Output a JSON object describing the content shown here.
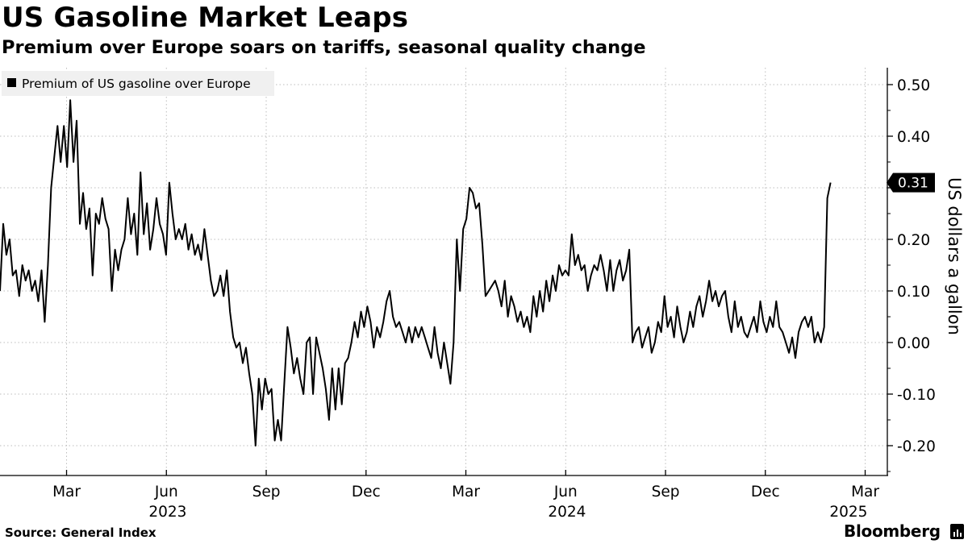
{
  "header": {
    "title": "US Gasoline Market Leaps",
    "subtitle": "Premium over Europe soars on tariffs, seasonal quality change"
  },
  "footer": {
    "source": "Source: General Index",
    "brand": "Bloomberg",
    "brand_icon": "bloomberg-terminal-icon"
  },
  "colors": {
    "line": "#000000",
    "grid": "#bdbdbd",
    "legend_bg": "#f0f0f0",
    "label_bg": "#000000",
    "label_text": "#ffffff"
  },
  "chart_data": {
    "type": "line",
    "title": "US Gasoline Market Leaps",
    "subtitle": "Premium over Europe soars on tariffs, seasonal quality change",
    "ylabel": "US dollars a gallon",
    "xlabel": "",
    "ylim": [
      -0.26,
      0.53
    ],
    "xlim": [
      2023.0,
      2025.21
    ],
    "yticks": [
      {
        "value": 0.5,
        "label": "0.50"
      },
      {
        "value": 0.4,
        "label": "0.40"
      },
      {
        "value": 0.3,
        "label": ""
      },
      {
        "value": 0.2,
        "label": "0.20"
      },
      {
        "value": 0.1,
        "label": "0.10"
      },
      {
        "value": 0.0,
        "label": "0.00"
      },
      {
        "value": -0.1,
        "label": "-0.10"
      },
      {
        "value": -0.2,
        "label": "-0.20"
      }
    ],
    "xticks": [
      {
        "t": 2023.1667,
        "label": "Mar"
      },
      {
        "t": 2023.4167,
        "label": "Jun"
      },
      {
        "t": 2023.6667,
        "label": "Sep"
      },
      {
        "t": 2023.9167,
        "label": "Dec"
      },
      {
        "t": 2024.1667,
        "label": "Mar"
      },
      {
        "t": 2024.4167,
        "label": "Jun"
      },
      {
        "t": 2024.6667,
        "label": "Sep"
      },
      {
        "t": 2024.9167,
        "label": "Dec"
      },
      {
        "t": 2025.1667,
        "label": "Mar"
      }
    ],
    "year_labels": [
      {
        "t": 2023.42,
        "label": "2023"
      },
      {
        "t": 2024.42,
        "label": "2024"
      },
      {
        "t": 2025.125,
        "label": "2025"
      }
    ],
    "grid": true,
    "legend": {
      "position": "top-left",
      "entries": [
        "Premium of US gasoline over Europe"
      ]
    },
    "last_value": {
      "value": 0.31,
      "label": "0.31"
    },
    "series": [
      {
        "name": "Premium of US gasoline over Europe",
        "points": [
          [
            2023.0,
            0.1
          ],
          [
            2023.008,
            0.23
          ],
          [
            2023.016,
            0.17
          ],
          [
            2023.024,
            0.2
          ],
          [
            2023.032,
            0.13
          ],
          [
            2023.04,
            0.14
          ],
          [
            2023.048,
            0.09
          ],
          [
            2023.056,
            0.15
          ],
          [
            2023.064,
            0.12
          ],
          [
            2023.072,
            0.14
          ],
          [
            2023.08,
            0.1
          ],
          [
            2023.088,
            0.12
          ],
          [
            2023.096,
            0.08
          ],
          [
            2023.104,
            0.14
          ],
          [
            2023.112,
            0.04
          ],
          [
            2023.12,
            0.15
          ],
          [
            2023.128,
            0.3
          ],
          [
            2023.136,
            0.36
          ],
          [
            2023.144,
            0.42
          ],
          [
            2023.152,
            0.35
          ],
          [
            2023.16,
            0.42
          ],
          [
            2023.168,
            0.34
          ],
          [
            2023.176,
            0.47
          ],
          [
            2023.184,
            0.35
          ],
          [
            2023.192,
            0.43
          ],
          [
            2023.2,
            0.23
          ],
          [
            2023.208,
            0.29
          ],
          [
            2023.216,
            0.22
          ],
          [
            2023.224,
            0.26
          ],
          [
            2023.232,
            0.13
          ],
          [
            2023.24,
            0.25
          ],
          [
            2023.248,
            0.23
          ],
          [
            2023.256,
            0.28
          ],
          [
            2023.264,
            0.24
          ],
          [
            2023.272,
            0.22
          ],
          [
            2023.28,
            0.1
          ],
          [
            2023.288,
            0.18
          ],
          [
            2023.296,
            0.14
          ],
          [
            2023.304,
            0.18
          ],
          [
            2023.312,
            0.2
          ],
          [
            2023.32,
            0.28
          ],
          [
            2023.328,
            0.21
          ],
          [
            2023.336,
            0.25
          ],
          [
            2023.344,
            0.17
          ],
          [
            2023.352,
            0.33
          ],
          [
            2023.36,
            0.21
          ],
          [
            2023.368,
            0.27
          ],
          [
            2023.376,
            0.18
          ],
          [
            2023.384,
            0.22
          ],
          [
            2023.392,
            0.28
          ],
          [
            2023.4,
            0.23
          ],
          [
            2023.408,
            0.21
          ],
          [
            2023.416,
            0.17
          ],
          [
            2023.424,
            0.31
          ],
          [
            2023.432,
            0.25
          ],
          [
            2023.44,
            0.2
          ],
          [
            2023.448,
            0.22
          ],
          [
            2023.456,
            0.2
          ],
          [
            2023.464,
            0.23
          ],
          [
            2023.472,
            0.18
          ],
          [
            2023.48,
            0.21
          ],
          [
            2023.488,
            0.17
          ],
          [
            2023.496,
            0.19
          ],
          [
            2023.504,
            0.16
          ],
          [
            2023.512,
            0.22
          ],
          [
            2023.52,
            0.17
          ],
          [
            2023.528,
            0.12
          ],
          [
            2023.536,
            0.09
          ],
          [
            2023.544,
            0.1
          ],
          [
            2023.552,
            0.13
          ],
          [
            2023.56,
            0.09
          ],
          [
            2023.568,
            0.14
          ],
          [
            2023.576,
            0.06
          ],
          [
            2023.584,
            0.01
          ],
          [
            2023.592,
            -0.01
          ],
          [
            2023.6,
            0.0
          ],
          [
            2023.608,
            -0.04
          ],
          [
            2023.616,
            -0.01
          ],
          [
            2023.624,
            -0.06
          ],
          [
            2023.632,
            -0.1
          ],
          [
            2023.64,
            -0.2
          ],
          [
            2023.648,
            -0.07
          ],
          [
            2023.656,
            -0.13
          ],
          [
            2023.664,
            -0.07
          ],
          [
            2023.672,
            -0.1
          ],
          [
            2023.68,
            -0.09
          ],
          [
            2023.688,
            -0.19
          ],
          [
            2023.696,
            -0.15
          ],
          [
            2023.704,
            -0.19
          ],
          [
            2023.712,
            -0.08
          ],
          [
            2023.72,
            0.03
          ],
          [
            2023.728,
            -0.01
          ],
          [
            2023.736,
            -0.06
          ],
          [
            2023.744,
            -0.03
          ],
          [
            2023.752,
            -0.07
          ],
          [
            2023.76,
            -0.1
          ],
          [
            2023.768,
            0.0
          ],
          [
            2023.776,
            0.01
          ],
          [
            2023.784,
            -0.1
          ],
          [
            2023.792,
            0.01
          ],
          [
            2023.8,
            -0.02
          ],
          [
            2023.808,
            -0.05
          ],
          [
            2023.816,
            -0.09
          ],
          [
            2023.824,
            -0.15
          ],
          [
            2023.832,
            -0.05
          ],
          [
            2023.84,
            -0.13
          ],
          [
            2023.848,
            -0.05
          ],
          [
            2023.856,
            -0.12
          ],
          [
            2023.864,
            -0.04
          ],
          [
            2023.872,
            -0.03
          ],
          [
            2023.88,
            0.0
          ],
          [
            2023.888,
            0.04
          ],
          [
            2023.896,
            0.01
          ],
          [
            2023.904,
            0.06
          ],
          [
            2023.912,
            0.03
          ],
          [
            2023.92,
            0.07
          ],
          [
            2023.928,
            0.04
          ],
          [
            2023.936,
            -0.01
          ],
          [
            2023.944,
            0.03
          ],
          [
            2023.952,
            0.01
          ],
          [
            2023.96,
            0.04
          ],
          [
            2023.968,
            0.08
          ],
          [
            2023.976,
            0.1
          ],
          [
            2023.984,
            0.05
          ],
          [
            2023.992,
            0.03
          ],
          [
            2024.0,
            0.04
          ],
          [
            2024.008,
            0.02
          ],
          [
            2024.016,
            0.0
          ],
          [
            2024.024,
            0.03
          ],
          [
            2024.032,
            0.0
          ],
          [
            2024.04,
            0.03
          ],
          [
            2024.048,
            0.01
          ],
          [
            2024.056,
            0.03
          ],
          [
            2024.064,
            0.01
          ],
          [
            2024.072,
            -0.01
          ],
          [
            2024.08,
            -0.03
          ],
          [
            2024.088,
            0.03
          ],
          [
            2024.096,
            -0.02
          ],
          [
            2024.104,
            -0.05
          ],
          [
            2024.112,
            0.0
          ],
          [
            2024.12,
            -0.04
          ],
          [
            2024.128,
            -0.08
          ],
          [
            2024.136,
            0.0
          ],
          [
            2024.144,
            0.2
          ],
          [
            2024.152,
            0.1
          ],
          [
            2024.16,
            0.22
          ],
          [
            2024.168,
            0.24
          ],
          [
            2024.176,
            0.3
          ],
          [
            2024.184,
            0.29
          ],
          [
            2024.192,
            0.26
          ],
          [
            2024.2,
            0.27
          ],
          [
            2024.208,
            0.19
          ],
          [
            2024.216,
            0.09
          ],
          [
            2024.224,
            0.1
          ],
          [
            2024.232,
            0.11
          ],
          [
            2024.24,
            0.12
          ],
          [
            2024.248,
            0.1
          ],
          [
            2024.256,
            0.07
          ],
          [
            2024.264,
            0.12
          ],
          [
            2024.272,
            0.05
          ],
          [
            2024.28,
            0.09
          ],
          [
            2024.288,
            0.07
          ],
          [
            2024.296,
            0.04
          ],
          [
            2024.304,
            0.06
          ],
          [
            2024.312,
            0.03
          ],
          [
            2024.32,
            0.05
          ],
          [
            2024.328,
            0.02
          ],
          [
            2024.336,
            0.09
          ],
          [
            2024.344,
            0.05
          ],
          [
            2024.352,
            0.1
          ],
          [
            2024.36,
            0.06
          ],
          [
            2024.368,
            0.12
          ],
          [
            2024.376,
            0.08
          ],
          [
            2024.384,
            0.13
          ],
          [
            2024.392,
            0.1
          ],
          [
            2024.4,
            0.15
          ],
          [
            2024.408,
            0.13
          ],
          [
            2024.416,
            0.14
          ],
          [
            2024.424,
            0.13
          ],
          [
            2024.432,
            0.21
          ],
          [
            2024.44,
            0.15
          ],
          [
            2024.448,
            0.17
          ],
          [
            2024.456,
            0.14
          ],
          [
            2024.464,
            0.15
          ],
          [
            2024.472,
            0.1
          ],
          [
            2024.48,
            0.13
          ],
          [
            2024.488,
            0.15
          ],
          [
            2024.496,
            0.14
          ],
          [
            2024.504,
            0.17
          ],
          [
            2024.512,
            0.14
          ],
          [
            2024.52,
            0.1
          ],
          [
            2024.528,
            0.16
          ],
          [
            2024.536,
            0.1
          ],
          [
            2024.544,
            0.14
          ],
          [
            2024.552,
            0.16
          ],
          [
            2024.56,
            0.12
          ],
          [
            2024.568,
            0.14
          ],
          [
            2024.576,
            0.18
          ],
          [
            2024.584,
            0.0
          ],
          [
            2024.592,
            0.02
          ],
          [
            2024.6,
            0.03
          ],
          [
            2024.608,
            -0.01
          ],
          [
            2024.616,
            0.01
          ],
          [
            2024.624,
            0.03
          ],
          [
            2024.632,
            -0.02
          ],
          [
            2024.64,
            0.0
          ],
          [
            2024.648,
            0.04
          ],
          [
            2024.656,
            0.02
          ],
          [
            2024.664,
            0.09
          ],
          [
            2024.672,
            0.03
          ],
          [
            2024.68,
            0.05
          ],
          [
            2024.688,
            0.01
          ],
          [
            2024.696,
            0.07
          ],
          [
            2024.704,
            0.03
          ],
          [
            2024.712,
            0.0
          ],
          [
            2024.72,
            0.02
          ],
          [
            2024.728,
            0.06
          ],
          [
            2024.736,
            0.03
          ],
          [
            2024.744,
            0.07
          ],
          [
            2024.752,
            0.09
          ],
          [
            2024.76,
            0.05
          ],
          [
            2024.768,
            0.08
          ],
          [
            2024.776,
            0.12
          ],
          [
            2024.784,
            0.08
          ],
          [
            2024.792,
            0.1
          ],
          [
            2024.8,
            0.07
          ],
          [
            2024.808,
            0.09
          ],
          [
            2024.816,
            0.1
          ],
          [
            2024.824,
            0.05
          ],
          [
            2024.832,
            0.02
          ],
          [
            2024.84,
            0.08
          ],
          [
            2024.848,
            0.03
          ],
          [
            2024.856,
            0.05
          ],
          [
            2024.864,
            0.02
          ],
          [
            2024.872,
            0.01
          ],
          [
            2024.88,
            0.03
          ],
          [
            2024.888,
            0.05
          ],
          [
            2024.896,
            0.02
          ],
          [
            2024.904,
            0.08
          ],
          [
            2024.912,
            0.04
          ],
          [
            2024.92,
            0.02
          ],
          [
            2024.928,
            0.05
          ],
          [
            2024.936,
            0.03
          ],
          [
            2024.944,
            0.08
          ],
          [
            2024.952,
            0.03
          ],
          [
            2024.96,
            0.02
          ],
          [
            2024.968,
            0.0
          ],
          [
            2024.976,
            -0.02
          ],
          [
            2024.984,
            0.01
          ],
          [
            2024.992,
            -0.03
          ],
          [
            2025.0,
            0.02
          ],
          [
            2025.008,
            0.04
          ],
          [
            2025.016,
            0.05
          ],
          [
            2025.024,
            0.03
          ],
          [
            2025.032,
            0.05
          ],
          [
            2025.04,
            0.0
          ],
          [
            2025.048,
            0.02
          ],
          [
            2025.056,
            0.0
          ],
          [
            2025.064,
            0.03
          ],
          [
            2025.072,
            0.28
          ],
          [
            2025.08,
            0.31
          ]
        ]
      }
    ]
  }
}
